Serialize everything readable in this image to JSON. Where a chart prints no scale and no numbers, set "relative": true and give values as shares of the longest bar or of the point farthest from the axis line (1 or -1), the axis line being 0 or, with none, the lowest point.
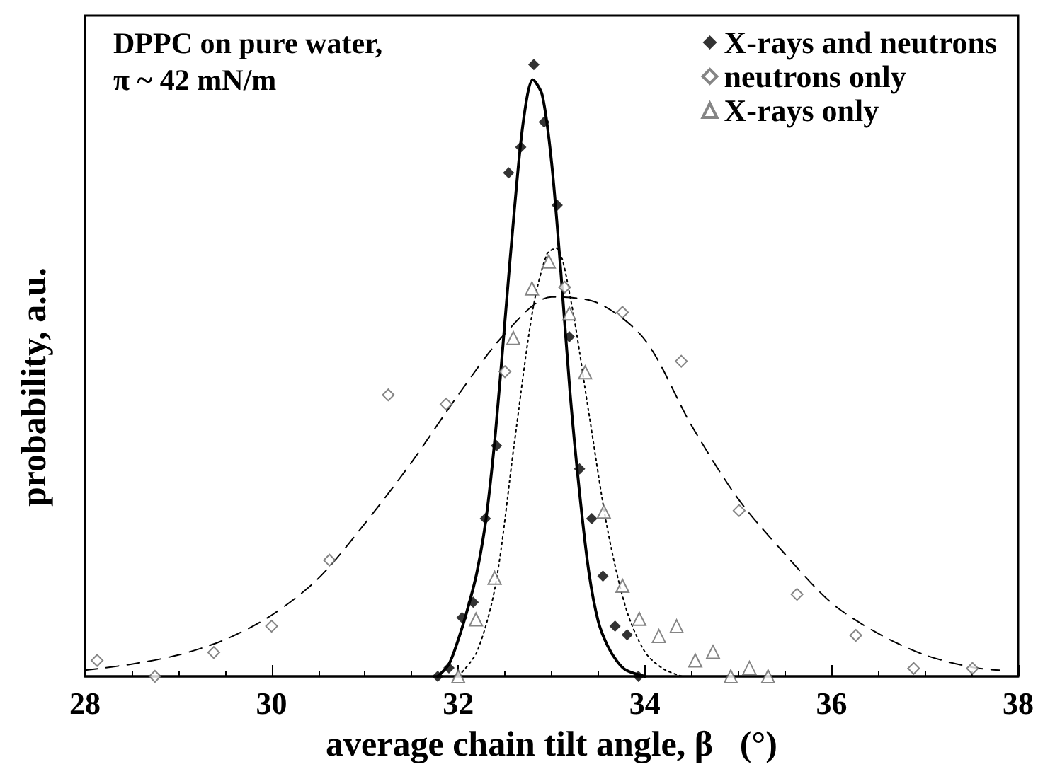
{
  "chart_data": {
    "type": "scatter",
    "relative": true,
    "xlabel": "average chain tilt angle, β   (°)",
    "ylabel": "probability, a.u.",
    "annotations": [
      "DPPC on pure water,",
      "π ~ 42 mN/m"
    ],
    "xlim": [
      28,
      38
    ],
    "xticks": [
      28,
      30,
      32,
      34,
      36,
      38
    ],
    "legend": "top right",
    "grid": false,
    "series": [
      {
        "name": "X-rays and neutrons",
        "marker": "diamond",
        "line_style": "solid",
        "color": "#000000",
        "x": [
          31.78,
          31.9,
          32.04,
          32.16,
          32.29,
          32.41,
          32.54,
          32.67,
          32.81,
          32.92,
          33.06,
          33.19,
          33.3,
          33.43,
          33.55,
          33.68,
          33.81,
          33.93
        ],
        "values": [
          0,
          0.014,
          0.096,
          0.121,
          0.258,
          0.377,
          0.823,
          0.865,
          1.0,
          0.906,
          0.77,
          0.555,
          0.339,
          0.258,
          0.164,
          0.082,
          0.068,
          0
        ]
      },
      {
        "name": "neutrons only",
        "marker": "diamond",
        "line_style": "dashed",
        "color": "#666666",
        "x": [
          28.13,
          28.75,
          29.38,
          30.0,
          30.62,
          31.25,
          31.87,
          32.5,
          33.14,
          33.76,
          34.39,
          35.01,
          35.63,
          36.26,
          36.88,
          37.51
        ],
        "values": [
          0.026,
          0,
          0.039,
          0.082,
          0.19,
          0.46,
          0.445,
          0.498,
          0.636,
          0.595,
          0.515,
          0.271,
          0.134,
          0.067,
          0.013,
          0.013
        ]
      },
      {
        "name": "X-rays only",
        "marker": "triangle",
        "line_style": "dotted",
        "color": "#666666",
        "x": [
          32.0,
          32.19,
          32.39,
          32.59,
          32.79,
          32.97,
          33.19,
          33.36,
          33.56,
          33.76,
          33.94,
          34.15,
          34.34,
          34.54,
          34.73,
          34.92,
          35.12,
          35.32
        ],
        "values": [
          0,
          0.093,
          0.161,
          0.553,
          0.634,
          0.678,
          0.593,
          0.497,
          0.269,
          0.148,
          0.094,
          0.066,
          0.082,
          0.026,
          0.04,
          0,
          0.014,
          0
        ]
      },
      {
        "type": "line",
        "marker": "none",
        "line_style": "solid",
        "color": "#000000",
        "x": [
          31.78,
          31.9,
          32.0,
          32.1,
          32.2,
          32.3,
          32.4,
          32.5,
          32.6,
          32.7,
          32.8,
          32.9,
          33.0,
          33.1,
          33.2,
          33.3,
          33.4,
          33.5,
          33.6,
          33.7,
          33.8,
          34.0
        ],
        "values": [
          0,
          0.02,
          0.06,
          0.11,
          0.17,
          0.26,
          0.4,
          0.58,
          0.76,
          0.91,
          0.975,
          0.95,
          0.84,
          0.66,
          0.46,
          0.3,
          0.17,
          0.09,
          0.05,
          0.025,
          0.01,
          0
        ]
      },
      {
        "type": "line",
        "marker": "none",
        "line_style": "dashed",
        "color": "#000000",
        "x": [
          28.0,
          28.5,
          29.0,
          29.5,
          30.0,
          30.5,
          31.0,
          31.5,
          32.0,
          32.5,
          33.0,
          33.5,
          34.0,
          34.5,
          35.0,
          35.5,
          36.0,
          36.5,
          37.0,
          37.5,
          37.8
        ],
        "values": [
          0.01,
          0.02,
          0.035,
          0.06,
          0.1,
          0.16,
          0.25,
          0.35,
          0.46,
          0.56,
          0.62,
          0.61,
          0.55,
          0.41,
          0.29,
          0.2,
          0.12,
          0.07,
          0.035,
          0.015,
          0.01
        ]
      },
      {
        "type": "line",
        "marker": "none",
        "line_style": "dotted",
        "color": "#000000",
        "x": [
          32.0,
          32.2,
          32.4,
          32.6,
          32.8,
          32.95,
          33.05,
          33.2,
          33.4,
          33.6,
          33.8,
          34.0,
          34.2,
          34.4
        ],
        "values": [
          0,
          0.04,
          0.15,
          0.38,
          0.6,
          0.69,
          0.7,
          0.62,
          0.43,
          0.24,
          0.11,
          0.04,
          0.012,
          0
        ]
      }
    ]
  }
}
